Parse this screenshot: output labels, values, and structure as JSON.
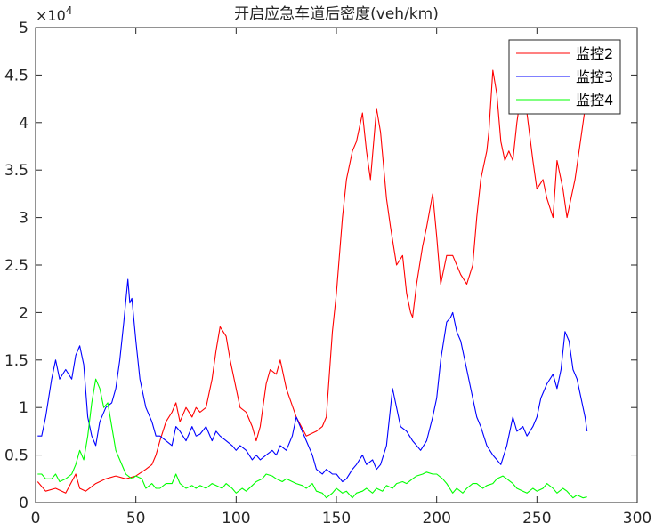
{
  "chart_data": {
    "type": "line",
    "title": "开启应急车道后密度(veh/km)",
    "xlabel": "",
    "ylabel": "",
    "xlim": [
      0,
      300
    ],
    "ylim": [
      0,
      5
    ],
    "y_exponent_label": "×10",
    "y_exponent_power": "4",
    "x_ticks": [
      "0",
      "50",
      "100",
      "150",
      "200",
      "250",
      "300"
    ],
    "y_ticks": [
      "0",
      "0.5",
      "1",
      "1.5",
      "2",
      "2.5",
      "3",
      "3.5",
      "4",
      "4.5",
      "5"
    ],
    "x_tick_values": [
      0,
      50,
      100,
      150,
      200,
      250,
      300
    ],
    "y_tick_values": [
      0,
      0.5,
      1,
      1.5,
      2,
      2.5,
      3,
      3.5,
      4,
      4.5,
      5
    ],
    "grid": false,
    "legend_position": "top-right",
    "series": [
      {
        "name": "监控2",
        "color": "#ff0000",
        "x": [
          1,
          5,
          10,
          15,
          20,
          22,
          25,
          30,
          35,
          40,
          45,
          50,
          55,
          58,
          60,
          62,
          65,
          68,
          70,
          72,
          75,
          78,
          80,
          82,
          85,
          88,
          90,
          92,
          95,
          97,
          100,
          102,
          105,
          108,
          110,
          112,
          115,
          117,
          120,
          122,
          125,
          130,
          135,
          140,
          143,
          145,
          148,
          150,
          153,
          155,
          158,
          160,
          163,
          165,
          167,
          170,
          172,
          175,
          177,
          180,
          183,
          185,
          187,
          188,
          190,
          193,
          195,
          198,
          200,
          202,
          205,
          208,
          210,
          212,
          215,
          218,
          220,
          222,
          225,
          226,
          228,
          230,
          232,
          234,
          236,
          238,
          240,
          242,
          245,
          248,
          250,
          253,
          255,
          258,
          260,
          263,
          265,
          267,
          269,
          271,
          273,
          275
        ],
        "y": [
          0.22,
          0.12,
          0.15,
          0.1,
          0.3,
          0.15,
          0.12,
          0.2,
          0.25,
          0.28,
          0.25,
          0.28,
          0.35,
          0.4,
          0.5,
          0.65,
          0.85,
          0.95,
          1.05,
          0.85,
          1.0,
          0.9,
          1.0,
          0.95,
          1.0,
          1.3,
          1.6,
          1.85,
          1.75,
          1.5,
          1.2,
          1.0,
          0.95,
          0.8,
          0.65,
          0.8,
          1.25,
          1.4,
          1.35,
          1.5,
          1.2,
          0.9,
          0.7,
          0.75,
          0.8,
          0.9,
          1.8,
          2.2,
          3.0,
          3.4,
          3.7,
          3.8,
          4.1,
          3.7,
          3.4,
          4.15,
          3.9,
          3.2,
          2.9,
          2.5,
          2.6,
          2.2,
          2.0,
          1.95,
          2.3,
          2.7,
          2.9,
          3.25,
          2.8,
          2.3,
          2.6,
          2.6,
          2.5,
          2.4,
          2.3,
          2.5,
          3.0,
          3.4,
          3.7,
          3.9,
          4.55,
          4.3,
          3.8,
          3.6,
          3.7,
          3.6,
          4.0,
          4.3,
          4.1,
          3.6,
          3.3,
          3.4,
          3.2,
          3.0,
          3.6,
          3.3,
          3.0,
          3.2,
          3.4,
          3.7,
          4.0,
          4.3
        ]
      },
      {
        "name": "监控3",
        "color": "#0000ff",
        "x": [
          1,
          3,
          5,
          8,
          10,
          12,
          15,
          18,
          20,
          22,
          24,
          26,
          28,
          30,
          32,
          35,
          38,
          40,
          42,
          44,
          46,
          47,
          48,
          50,
          52,
          55,
          58,
          60,
          62,
          65,
          68,
          70,
          72,
          75,
          78,
          80,
          82,
          85,
          88,
          90,
          92,
          95,
          98,
          100,
          102,
          105,
          108,
          110,
          112,
          115,
          118,
          120,
          122,
          125,
          128,
          130,
          132,
          135,
          138,
          140,
          143,
          145,
          148,
          150,
          153,
          155,
          158,
          160,
          163,
          165,
          168,
          170,
          172,
          175,
          178,
          180,
          182,
          185,
          188,
          190,
          192,
          195,
          198,
          200,
          202,
          205,
          207,
          208,
          210,
          212,
          215,
          218,
          220,
          222,
          225,
          228,
          230,
          232,
          235,
          238,
          240,
          243,
          245,
          248,
          250,
          252,
          255,
          258,
          260,
          262,
          264,
          266,
          268,
          270,
          272,
          274,
          275
        ],
        "y": [
          0.7,
          0.7,
          0.9,
          1.3,
          1.5,
          1.3,
          1.4,
          1.3,
          1.55,
          1.65,
          1.45,
          0.9,
          0.7,
          0.6,
          0.85,
          1.0,
          1.05,
          1.2,
          1.5,
          1.9,
          2.35,
          2.1,
          2.15,
          1.7,
          1.3,
          1.0,
          0.85,
          0.7,
          0.7,
          0.65,
          0.6,
          0.8,
          0.75,
          0.65,
          0.8,
          0.7,
          0.72,
          0.8,
          0.65,
          0.75,
          0.7,
          0.65,
          0.6,
          0.55,
          0.6,
          0.55,
          0.45,
          0.5,
          0.45,
          0.5,
          0.55,
          0.5,
          0.6,
          0.55,
          0.7,
          0.9,
          0.8,
          0.65,
          0.5,
          0.35,
          0.3,
          0.35,
          0.3,
          0.3,
          0.22,
          0.25,
          0.35,
          0.4,
          0.5,
          0.4,
          0.45,
          0.35,
          0.4,
          0.6,
          1.2,
          1.0,
          0.8,
          0.75,
          0.65,
          0.6,
          0.55,
          0.65,
          0.9,
          1.1,
          1.5,
          1.9,
          1.95,
          2.0,
          1.8,
          1.7,
          1.4,
          1.1,
          0.9,
          0.8,
          0.6,
          0.5,
          0.45,
          0.4,
          0.6,
          0.9,
          0.75,
          0.8,
          0.7,
          0.8,
          0.9,
          1.1,
          1.25,
          1.35,
          1.2,
          1.4,
          1.8,
          1.7,
          1.4,
          1.3,
          1.1,
          0.9,
          0.75
        ]
      },
      {
        "name": "监控4",
        "color": "#00ff00",
        "x": [
          1,
          3,
          5,
          8,
          10,
          12,
          15,
          18,
          20,
          22,
          24,
          26,
          28,
          30,
          32,
          34,
          36,
          38,
          40,
          42,
          45,
          48,
          50,
          53,
          55,
          58,
          60,
          62,
          65,
          68,
          70,
          72,
          75,
          78,
          80,
          82,
          85,
          88,
          90,
          93,
          95,
          98,
          100,
          103,
          105,
          108,
          110,
          113,
          115,
          118,
          120,
          123,
          125,
          128,
          130,
          133,
          135,
          138,
          140,
          143,
          145,
          148,
          150,
          153,
          155,
          158,
          160,
          163,
          165,
          168,
          170,
          173,
          175,
          178,
          180,
          183,
          185,
          188,
          190,
          193,
          195,
          198,
          200,
          203,
          205,
          208,
          210,
          213,
          215,
          218,
          220,
          223,
          225,
          228,
          230,
          233,
          235,
          238,
          240,
          243,
          245,
          248,
          250,
          253,
          255,
          258,
          260,
          263,
          265,
          268,
          270,
          273,
          275
        ],
        "y": [
          0.3,
          0.3,
          0.25,
          0.25,
          0.3,
          0.22,
          0.25,
          0.3,
          0.4,
          0.55,
          0.45,
          0.7,
          1.05,
          1.3,
          1.2,
          1.0,
          1.05,
          0.8,
          0.55,
          0.45,
          0.3,
          0.25,
          0.28,
          0.25,
          0.15,
          0.2,
          0.15,
          0.15,
          0.2,
          0.2,
          0.3,
          0.2,
          0.15,
          0.18,
          0.15,
          0.18,
          0.15,
          0.2,
          0.18,
          0.15,
          0.2,
          0.15,
          0.1,
          0.15,
          0.12,
          0.18,
          0.22,
          0.25,
          0.3,
          0.28,
          0.25,
          0.22,
          0.25,
          0.22,
          0.2,
          0.18,
          0.15,
          0.2,
          0.12,
          0.1,
          0.05,
          0.1,
          0.15,
          0.1,
          0.12,
          0.05,
          0.1,
          0.12,
          0.15,
          0.1,
          0.15,
          0.12,
          0.18,
          0.15,
          0.2,
          0.22,
          0.2,
          0.25,
          0.28,
          0.3,
          0.32,
          0.3,
          0.3,
          0.25,
          0.2,
          0.1,
          0.15,
          0.1,
          0.15,
          0.2,
          0.2,
          0.15,
          0.18,
          0.2,
          0.25,
          0.28,
          0.25,
          0.2,
          0.15,
          0.12,
          0.1,
          0.15,
          0.12,
          0.15,
          0.2,
          0.15,
          0.1,
          0.15,
          0.12,
          0.05,
          0.08,
          0.05,
          0.06
        ]
      }
    ]
  }
}
